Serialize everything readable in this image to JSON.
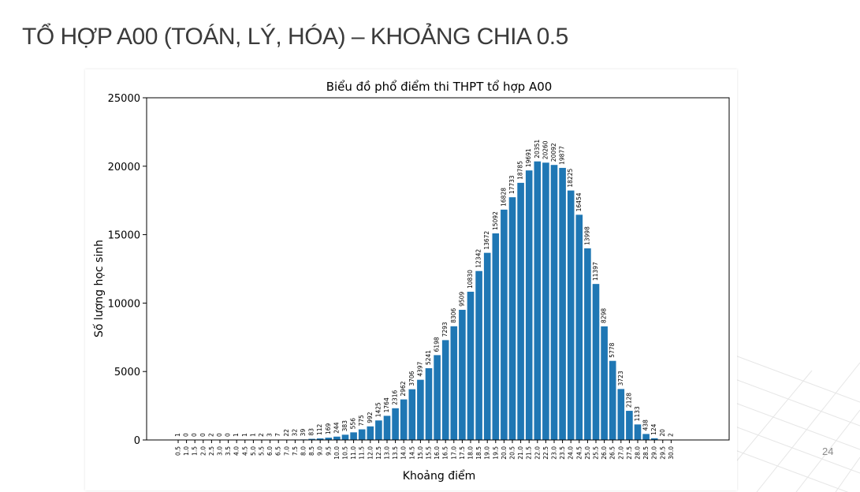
{
  "slide": {
    "title": "TỔ HỢP A00 (TOÁN, LÝ, HÓA) – KHOẢNG CHIA 0.5",
    "page_number": "24"
  },
  "colors": {
    "bar": "#1f77b4",
    "title": "#3b3b3b"
  },
  "chart_data": {
    "type": "bar",
    "title": "Biểu đồ phổ điểm thi THPT tổ hợp A00",
    "xlabel": "Khoảng điểm",
    "ylabel": "Số lượng học sinh",
    "ylim": [
      0,
      25000
    ],
    "yticks": [
      0,
      5000,
      10000,
      15000,
      20000,
      25000
    ],
    "grid": false,
    "categories": [
      "0.5",
      "1.0",
      "1.5",
      "2.0",
      "2.5",
      "3.0",
      "3.5",
      "4.0",
      "4.5",
      "5.0",
      "5.5",
      "6.0",
      "6.5",
      "7.0",
      "7.5",
      "8.0",
      "8.5",
      "9.0",
      "9.5",
      "10.0",
      "10.5",
      "11.0",
      "11.5",
      "12.0",
      "12.5",
      "13.0",
      "13.5",
      "14.0",
      "14.5",
      "15.0",
      "15.5",
      "16.0",
      "16.5",
      "17.0",
      "17.5",
      "18.0",
      "18.5",
      "19.0",
      "19.5",
      "20.0",
      "20.5",
      "21.0",
      "21.5",
      "22.0",
      "22.5",
      "23.0",
      "23.5",
      "24.0",
      "24.5",
      "25.0",
      "25.5",
      "26.0",
      "26.5",
      "27.0",
      "27.5",
      "28.0",
      "28.5",
      "29.0",
      "29.5",
      "30.0"
    ],
    "values": [
      1,
      0,
      0,
      0,
      2,
      0,
      0,
      1,
      1,
      1,
      2,
      3,
      7,
      22,
      32,
      39,
      83,
      112,
      169,
      244,
      383,
      556,
      775,
      992,
      1425,
      1764,
      2316,
      2962,
      3706,
      4397,
      5241,
      6198,
      7293,
      8306,
      9509,
      10830,
      12342,
      13672,
      15092,
      16828,
      17733,
      18785,
      19691,
      20351,
      20260,
      20092,
      19877,
      18225,
      16454,
      13998,
      11397,
      8298,
      5778,
      3723,
      2128,
      1133,
      438,
      124,
      20,
      2
    ]
  }
}
